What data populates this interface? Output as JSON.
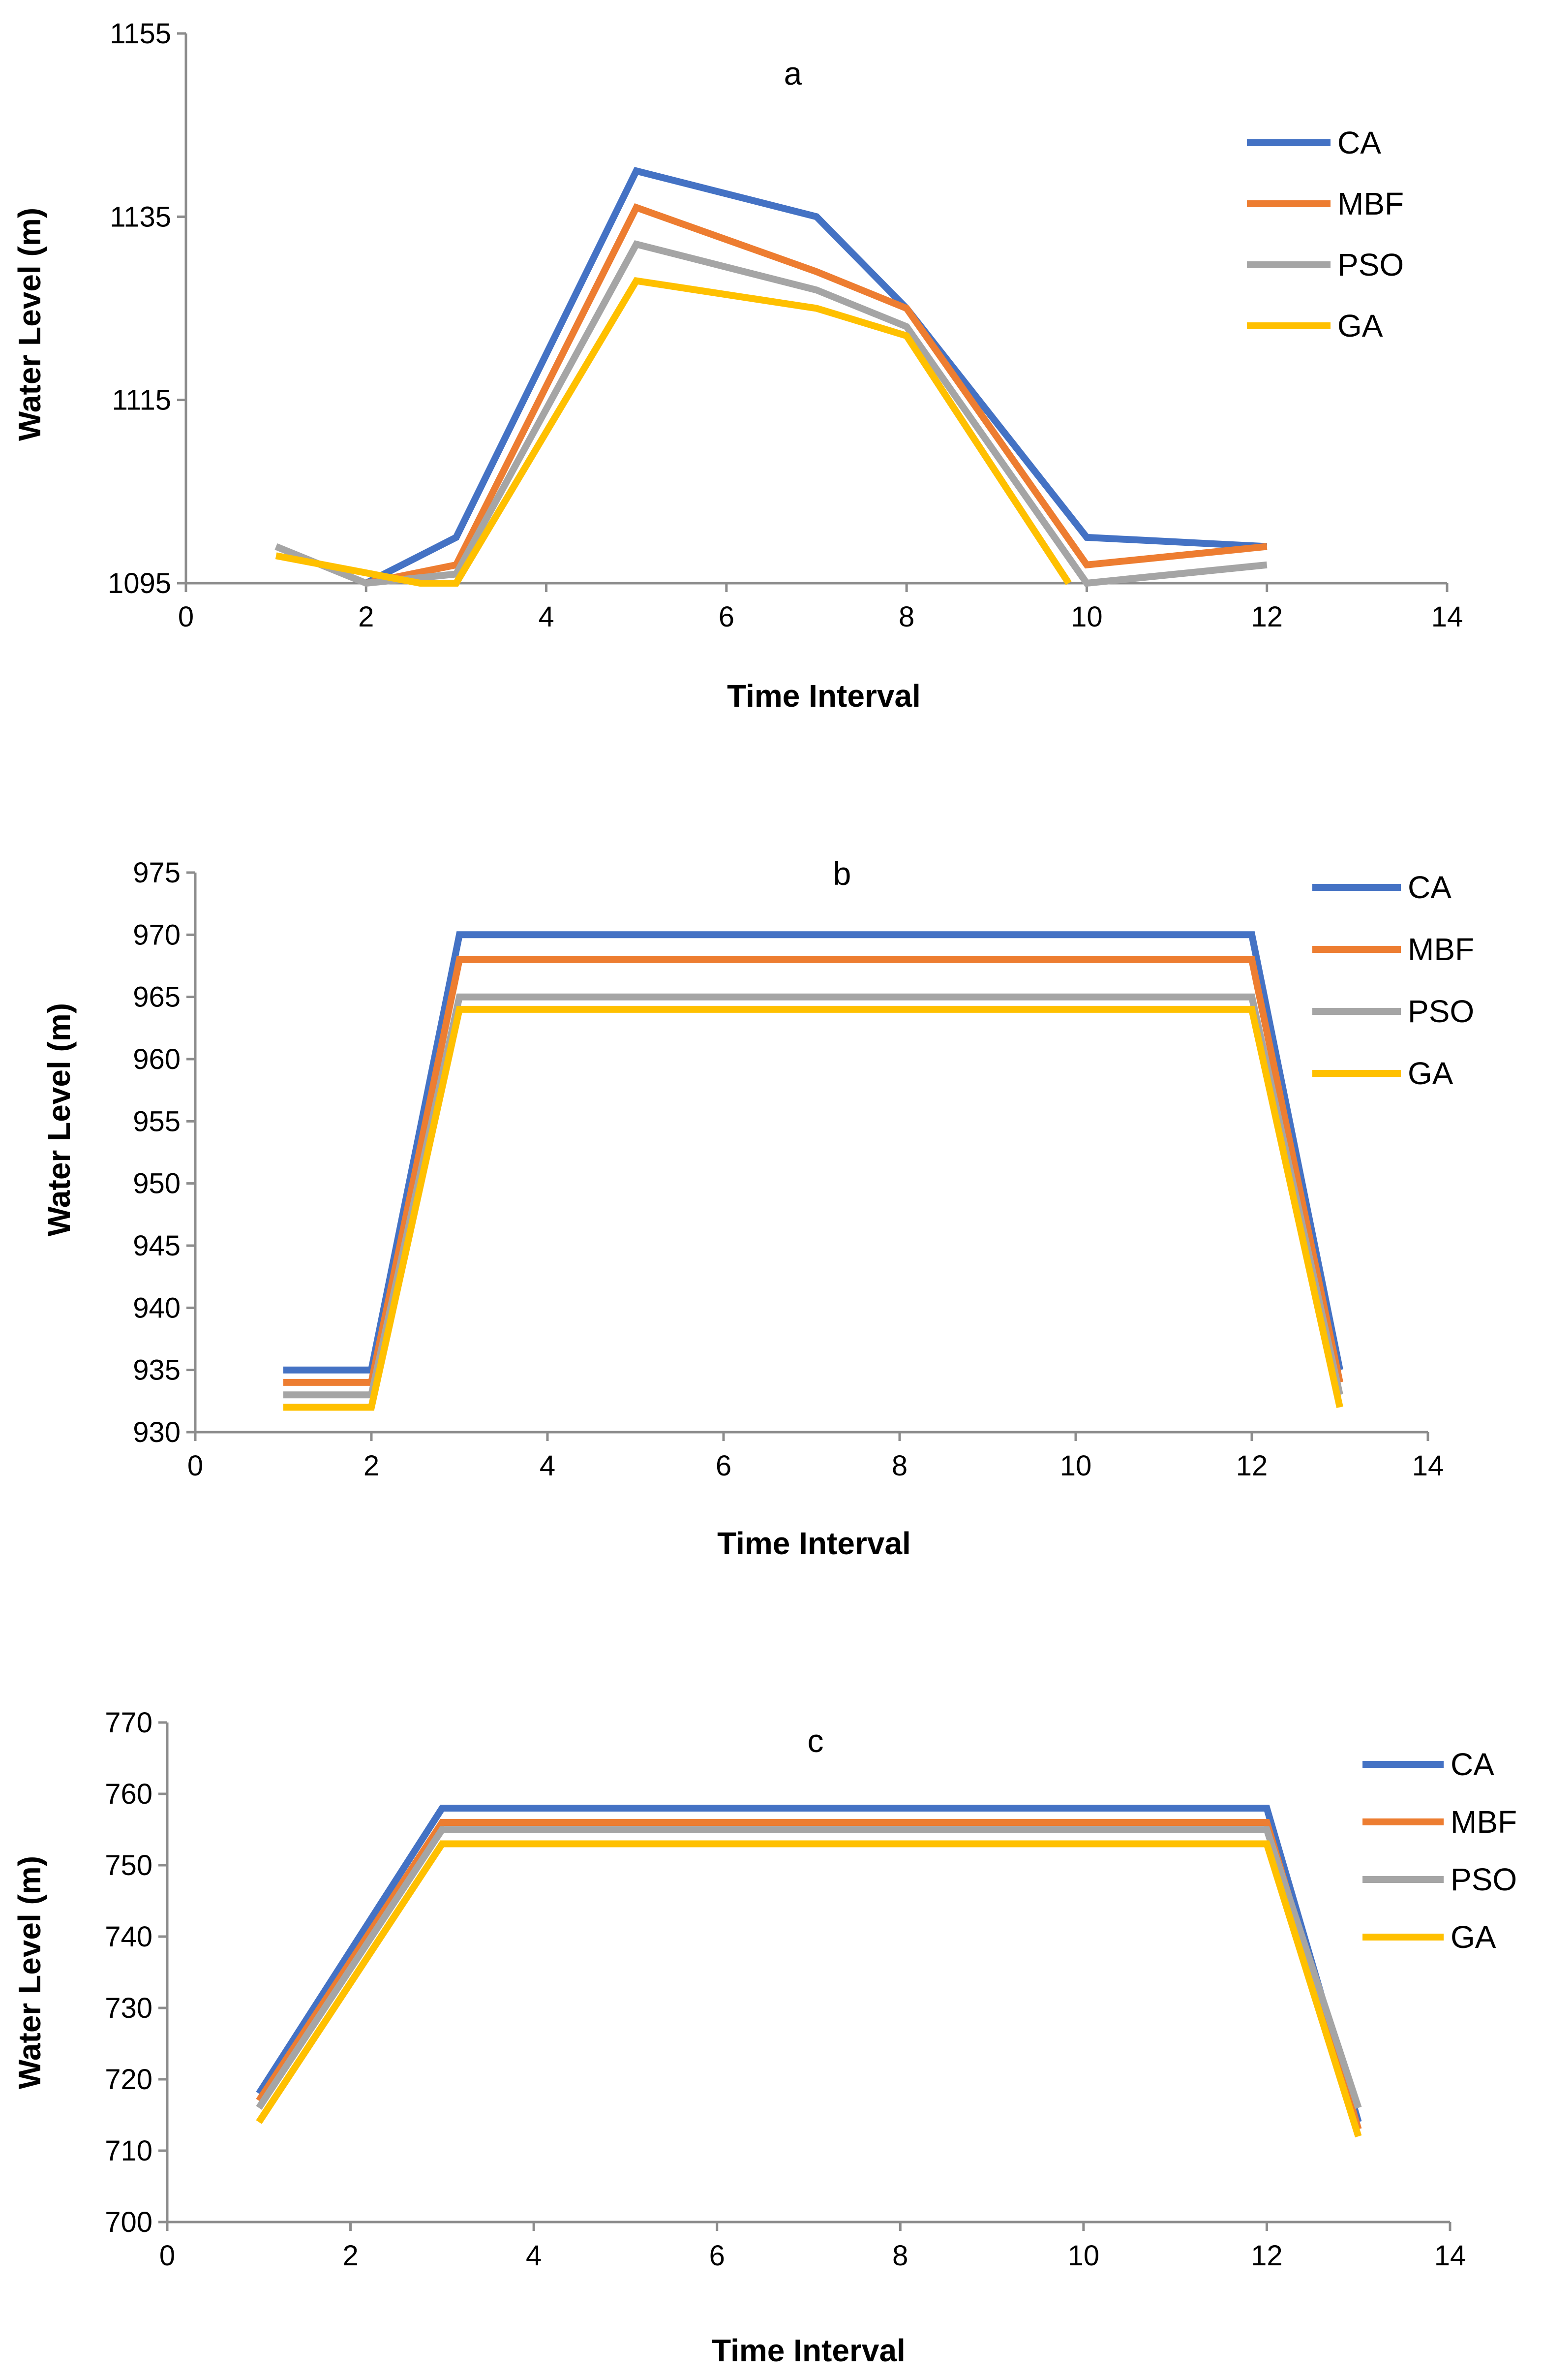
{
  "chart_data": [
    {
      "type": "line",
      "title": "a",
      "xlabel": "Time Interval",
      "ylabel": "Water Level (m)",
      "xlim": [
        0,
        14
      ],
      "ylim": [
        1095,
        1155
      ],
      "xticks": [
        0,
        2,
        4,
        6,
        8,
        10,
        12,
        14
      ],
      "yticks": [
        1095,
        1115,
        1135,
        1155
      ],
      "legend_position": "right",
      "series": [
        {
          "name": "CA",
          "color": "#4472C4",
          "x": [
            2,
            3,
            5,
            7,
            8,
            10,
            12
          ],
          "y": [
            1095,
            1100,
            1140,
            1135,
            1125,
            1100,
            1099
          ]
        },
        {
          "name": "MBF",
          "color": "#ED7D31",
          "x": [
            2,
            3,
            5,
            7,
            8,
            10,
            12
          ],
          "y": [
            1095,
            1097,
            1136,
            1129,
            1125,
            1097,
            1099
          ]
        },
        {
          "name": "PSO",
          "color": "#A5A5A5",
          "x": [
            1,
            2,
            3,
            5,
            7,
            8,
            10,
            12
          ],
          "y": [
            1099,
            1095,
            1096,
            1132,
            1127,
            1123,
            1095,
            1097
          ]
        },
        {
          "name": "GA",
          "color": "#FFC000",
          "x": [
            1,
            2.6,
            3,
            5,
            7,
            8,
            9.8
          ],
          "y": [
            1098,
            1095,
            1095,
            1128,
            1125,
            1122,
            1095
          ]
        }
      ]
    },
    {
      "type": "line",
      "title": "b",
      "xlabel": "Time Interval",
      "ylabel": "Water Level (m)",
      "xlim": [
        0,
        14
      ],
      "ylim": [
        930,
        975
      ],
      "xticks": [
        0,
        2,
        4,
        6,
        8,
        10,
        12,
        14
      ],
      "yticks": [
        930,
        935,
        940,
        945,
        950,
        955,
        960,
        965,
        970,
        975
      ],
      "legend_position": "top-right",
      "series": [
        {
          "name": "CA",
          "color": "#4472C4",
          "x": [
            1,
            2,
            3,
            4,
            5,
            6,
            7,
            8,
            9,
            10,
            11,
            12,
            13
          ],
          "y": [
            935,
            935,
            970,
            970,
            970,
            970,
            970,
            970,
            970,
            970,
            970,
            970,
            935
          ]
        },
        {
          "name": "MBF",
          "color": "#ED7D31",
          "x": [
            1,
            2,
            3,
            4,
            5,
            6,
            7,
            8,
            9,
            10,
            11,
            12,
            13
          ],
          "y": [
            934,
            934,
            968,
            968,
            968,
            968,
            968,
            968,
            968,
            968,
            968,
            968,
            934
          ]
        },
        {
          "name": "PSO",
          "color": "#A5A5A5",
          "x": [
            1,
            2,
            3,
            4,
            5,
            6,
            7,
            8,
            9,
            10,
            11,
            12,
            13
          ],
          "y": [
            933,
            933,
            965,
            965,
            965,
            965,
            965,
            965,
            965,
            965,
            965,
            965,
            933
          ]
        },
        {
          "name": "GA",
          "color": "#FFC000",
          "x": [
            1,
            2,
            3,
            4,
            5,
            6,
            7,
            8,
            9,
            10,
            11,
            12,
            13
          ],
          "y": [
            932,
            932,
            964,
            964,
            964,
            964,
            964,
            964,
            964,
            964,
            964,
            964,
            932
          ]
        }
      ]
    },
    {
      "type": "line",
      "title": "c",
      "xlabel": "Time Interval",
      "ylabel": "Water Level (m)",
      "xlim": [
        0,
        14
      ],
      "ylim": [
        700,
        770
      ],
      "xticks": [
        0,
        2,
        4,
        6,
        8,
        10,
        12,
        14
      ],
      "yticks": [
        700,
        710,
        720,
        730,
        740,
        750,
        760,
        770
      ],
      "legend_position": "top-right",
      "series": [
        {
          "name": "CA",
          "color": "#4472C4",
          "x": [
            1,
            3,
            4,
            5,
            6,
            7,
            8,
            9,
            10,
            11,
            12,
            13
          ],
          "y": [
            718,
            758,
            758,
            758,
            758,
            758,
            758,
            758,
            758,
            758,
            758,
            714
          ]
        },
        {
          "name": "MBF",
          "color": "#ED7D31",
          "x": [
            1,
            3,
            4,
            5,
            6,
            7,
            8,
            9,
            10,
            11,
            12,
            13
          ],
          "y": [
            717,
            756,
            756,
            756,
            756,
            756,
            756,
            756,
            756,
            756,
            756,
            713
          ]
        },
        {
          "name": "PSO",
          "color": "#A5A5A5",
          "x": [
            1,
            3,
            4,
            5,
            6,
            7,
            8,
            9,
            10,
            11,
            12,
            13
          ],
          "y": [
            716,
            755,
            755,
            755,
            755,
            755,
            755,
            755,
            755,
            755,
            755,
            716
          ]
        },
        {
          "name": "GA",
          "color": "#FFC000",
          "x": [
            1,
            3,
            4,
            5,
            6,
            7,
            8,
            9,
            10,
            11,
            12,
            13
          ],
          "y": [
            714,
            753,
            753,
            753,
            753,
            753,
            753,
            753,
            753,
            753,
            753,
            712
          ]
        }
      ]
    }
  ]
}
